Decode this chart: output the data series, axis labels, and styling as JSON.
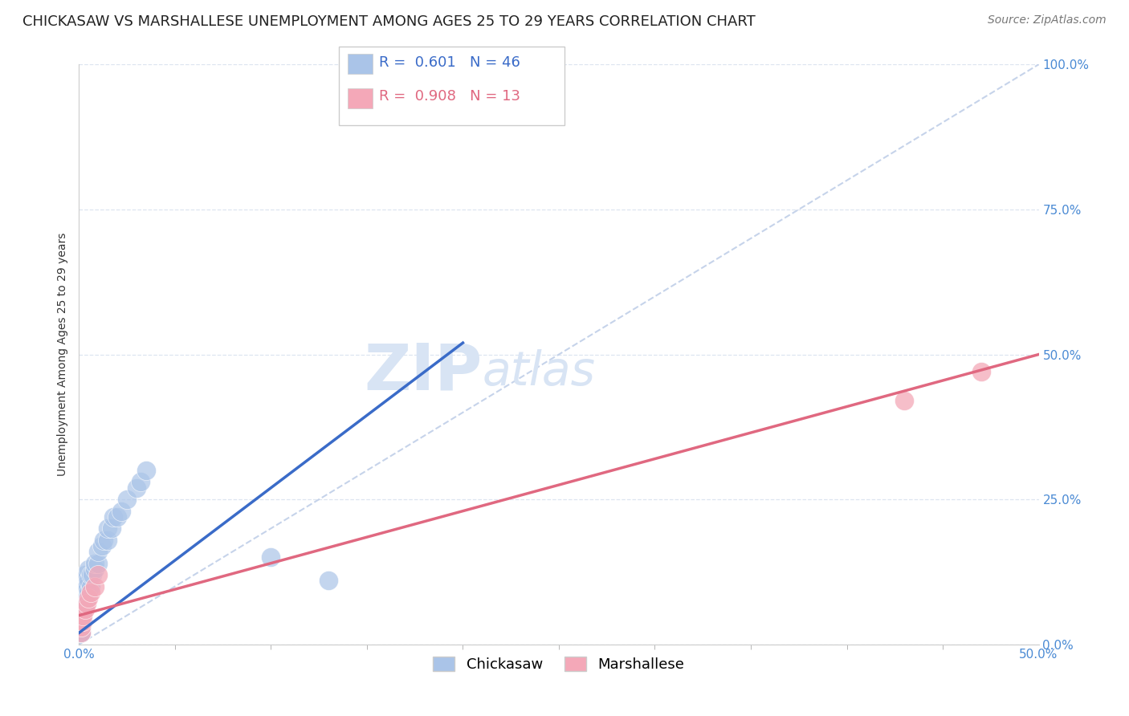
{
  "title": "CHICKASAW VS MARSHALLESE UNEMPLOYMENT AMONG AGES 25 TO 29 YEARS CORRELATION CHART",
  "source": "Source: ZipAtlas.com",
  "ylabel": "Unemployment Among Ages 25 to 29 years",
  "xlim": [
    0.0,
    0.5
  ],
  "ylim": [
    0.0,
    1.0
  ],
  "yticks": [
    0.0,
    0.25,
    0.5,
    0.75,
    1.0
  ],
  "ytick_labels": [
    "0.0%",
    "25.0%",
    "50.0%",
    "75.0%",
    "100.0%"
  ],
  "xtick_labels_bottom": [
    "0.0%",
    "50.0%"
  ],
  "xticks_bottom": [
    0.0,
    0.5
  ],
  "chickasaw_R": 0.601,
  "chickasaw_N": 46,
  "marshallese_R": 0.908,
  "marshallese_N": 13,
  "chickasaw_color": "#aac4e8",
  "marshallese_color": "#f4a8b8",
  "chickasaw_line_color": "#3a6bc8",
  "marshallese_line_color": "#e06880",
  "reference_line_color": "#c0cfe8",
  "background_color": "#ffffff",
  "grid_color": "#dde5f0",
  "title_fontsize": 13,
  "axis_label_fontsize": 10,
  "tick_fontsize": 11,
  "legend_fontsize": 13,
  "chickasaw_x": [
    0.001,
    0.001,
    0.001,
    0.001,
    0.001,
    0.001,
    0.001,
    0.001,
    0.001,
    0.001,
    0.002,
    0.002,
    0.002,
    0.002,
    0.002,
    0.002,
    0.002,
    0.003,
    0.003,
    0.003,
    0.004,
    0.004,
    0.005,
    0.005,
    0.005,
    0.006,
    0.006,
    0.007,
    0.008,
    0.008,
    0.01,
    0.01,
    0.012,
    0.013,
    0.015,
    0.015,
    0.017,
    0.018,
    0.02,
    0.022,
    0.025,
    0.03,
    0.032,
    0.035,
    0.1,
    0.13
  ],
  "chickasaw_y": [
    0.02,
    0.02,
    0.02,
    0.03,
    0.03,
    0.04,
    0.05,
    0.06,
    0.07,
    0.08,
    0.05,
    0.06,
    0.07,
    0.08,
    0.09,
    0.1,
    0.11,
    0.07,
    0.09,
    0.12,
    0.08,
    0.1,
    0.09,
    0.11,
    0.13,
    0.1,
    0.12,
    0.12,
    0.13,
    0.14,
    0.14,
    0.16,
    0.17,
    0.18,
    0.18,
    0.2,
    0.2,
    0.22,
    0.22,
    0.23,
    0.25,
    0.27,
    0.28,
    0.3,
    0.15,
    0.11
  ],
  "marshallese_x": [
    0.001,
    0.001,
    0.001,
    0.002,
    0.002,
    0.003,
    0.004,
    0.005,
    0.006,
    0.008,
    0.01,
    0.43,
    0.47
  ],
  "marshallese_y": [
    0.02,
    0.03,
    0.04,
    0.04,
    0.05,
    0.06,
    0.07,
    0.08,
    0.09,
    0.1,
    0.12,
    0.42,
    0.47
  ],
  "chickasaw_line_x": [
    0.0,
    0.2
  ],
  "chickasaw_line_y": [
    0.02,
    0.52
  ],
  "marshallese_line_x": [
    0.0,
    0.5
  ],
  "marshallese_line_y": [
    0.05,
    0.5
  ],
  "ref_line_x": [
    0.0,
    0.5
  ],
  "ref_line_y": [
    0.0,
    1.0
  ],
  "watermark_zip": "ZIP",
  "watermark_atlas": "atlas",
  "watermark_color": "#d8e4f4"
}
